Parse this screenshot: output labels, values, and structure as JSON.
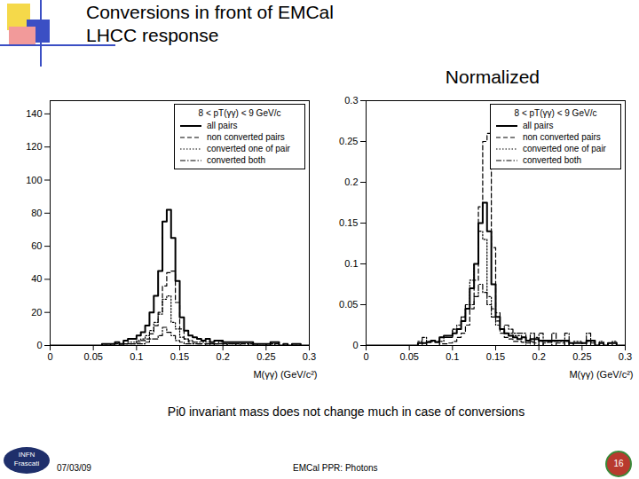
{
  "slide": {
    "title": "Conversions in front of EMCal",
    "subtitle": "LHCC response",
    "caption": "Pi0 invariant mass does not change much in case of conversions",
    "date": "07/03/09",
    "footer": "EMCal PPR: Photons",
    "page": "16",
    "logo": [
      "INFN",
      "Frascati"
    ]
  },
  "chart_data": [
    {
      "type": "histogram",
      "xlabel": "M(γγ) (GeV/c²)",
      "legend_title": "8 < pT(γγ) < 9 GeV/c",
      "legend": "top-right",
      "grid": false,
      "xlim": [
        0,
        0.3
      ],
      "xticks": [
        0,
        0.05,
        0.1,
        0.15,
        0.2,
        0.25,
        0.3
      ],
      "ylim": [
        0,
        148
      ],
      "yticks": [
        0,
        20,
        40,
        60,
        80,
        100,
        120,
        140
      ],
      "bins": [
        0,
        0.005,
        0.01,
        0.015,
        0.02,
        0.025,
        0.03,
        0.035,
        0.04,
        0.045,
        0.05,
        0.055,
        0.06,
        0.065,
        0.07,
        0.075,
        0.08,
        0.085,
        0.09,
        0.095,
        0.1,
        0.105,
        0.11,
        0.115,
        0.12,
        0.125,
        0.13,
        0.135,
        0.14,
        0.145,
        0.15,
        0.155,
        0.16,
        0.165,
        0.17,
        0.175,
        0.18,
        0.185,
        0.19,
        0.195,
        0.2,
        0.205,
        0.21,
        0.215,
        0.22,
        0.225,
        0.23,
        0.235,
        0.24,
        0.245,
        0.25,
        0.255,
        0.26,
        0.265,
        0.27,
        0.275,
        0.28,
        0.285,
        0.29,
        0.295,
        0.3
      ],
      "series": [
        {
          "name": "all pairs",
          "color": "#000000",
          "line_style": "solid",
          "values": [
            0,
            0,
            0,
            0,
            0,
            0,
            0,
            0,
            0,
            0,
            0,
            0,
            1,
            1,
            1,
            2,
            1,
            3,
            4,
            4,
            6,
            8,
            12,
            20,
            30,
            45,
            75,
            82,
            65,
            39,
            17,
            9,
            6,
            5,
            4,
            3,
            4,
            2,
            3,
            3,
            2,
            2,
            2,
            2,
            2,
            2,
            2,
            1,
            1,
            1,
            1,
            2,
            2,
            0,
            1,
            0,
            1,
            1,
            0,
            0
          ]
        },
        {
          "name": "non converted pairs",
          "color": "#000000",
          "line_style": "dashed",
          "values": [
            0,
            0,
            0,
            0,
            0,
            0,
            0,
            0,
            0,
            0,
            0,
            0,
            0,
            0,
            0,
            1,
            0,
            1,
            1,
            1,
            2,
            3,
            4,
            7,
            12,
            20,
            36,
            44,
            45,
            26,
            10,
            4,
            2,
            2,
            1,
            1,
            1,
            1,
            1,
            1,
            0,
            1,
            1,
            0,
            1,
            1,
            0,
            1,
            0,
            0,
            1,
            0,
            1,
            0,
            0,
            0,
            1,
            0,
            0,
            0
          ]
        },
        {
          "name": "converted one of pair",
          "color": "#000000",
          "line_style": "dotted",
          "values": [
            0,
            0,
            0,
            0,
            0,
            0,
            0,
            0,
            0,
            0,
            0,
            0,
            1,
            0,
            1,
            1,
            1,
            1,
            2,
            2,
            3,
            4,
            6,
            9,
            14,
            19,
            28,
            30,
            14,
            10,
            5,
            4,
            3,
            2,
            2,
            2,
            2,
            1,
            1,
            2,
            1,
            1,
            1,
            1,
            1,
            1,
            1,
            0,
            1,
            1,
            0,
            1,
            1,
            0,
            1,
            0,
            0,
            1,
            0,
            0
          ]
        },
        {
          "name": "converted both",
          "color": "#000000",
          "line_style": "dashdot",
          "values": [
            0,
            0,
            0,
            0,
            0,
            0,
            0,
            0,
            0,
            0,
            0,
            0,
            0,
            1,
            0,
            0,
            0,
            1,
            1,
            1,
            1,
            1,
            2,
            4,
            4,
            6,
            11,
            8,
            6,
            3,
            2,
            1,
            1,
            1,
            1,
            0,
            1,
            0,
            1,
            0,
            1,
            0,
            0,
            1,
            0,
            0,
            1,
            0,
            0,
            0,
            0,
            1,
            0,
            0,
            0,
            0,
            0,
            0,
            0,
            0
          ]
        }
      ]
    },
    {
      "type": "histogram",
      "title": "Normalized",
      "xlabel": "M(γγ) (GeV/c²)",
      "legend_title": "8 < pT(γγ) < 9 GeV/c",
      "legend": "top-right",
      "grid": false,
      "xlim": [
        0,
        0.3
      ],
      "xticks": [
        0,
        0.05,
        0.1,
        0.15,
        0.2,
        0.25,
        0.3
      ],
      "ylim": [
        0,
        0.3
      ],
      "yticks": [
        0,
        0.05,
        0.1,
        0.15,
        0.2,
        0.25,
        0.3
      ],
      "bins": [
        0,
        0.005,
        0.01,
        0.015,
        0.02,
        0.025,
        0.03,
        0.035,
        0.04,
        0.045,
        0.05,
        0.055,
        0.06,
        0.065,
        0.07,
        0.075,
        0.08,
        0.085,
        0.09,
        0.095,
        0.1,
        0.105,
        0.11,
        0.115,
        0.12,
        0.125,
        0.13,
        0.135,
        0.14,
        0.145,
        0.15,
        0.155,
        0.16,
        0.165,
        0.17,
        0.175,
        0.18,
        0.185,
        0.19,
        0.195,
        0.2,
        0.205,
        0.21,
        0.215,
        0.22,
        0.225,
        0.23,
        0.235,
        0.24,
        0.245,
        0.25,
        0.255,
        0.26,
        0.265,
        0.27,
        0.275,
        0.28,
        0.285,
        0.29,
        0.295,
        0.3
      ],
      "series": [
        {
          "name": "all pairs",
          "color": "#000000",
          "line_style": "solid",
          "values": [
            0,
            0,
            0,
            0,
            0,
            0,
            0,
            0,
            0,
            0,
            0,
            0,
            0.003,
            0.003,
            0.004,
            0.006,
            0.004,
            0.01,
            0.012,
            0.012,
            0.015,
            0.02,
            0.03,
            0.045,
            0.07,
            0.1,
            0.15,
            0.175,
            0.14,
            0.075,
            0.035,
            0.02,
            0.015,
            0.012,
            0.01,
            0.008,
            0.01,
            0.006,
            0.008,
            0.008,
            0.006,
            0.006,
            0.006,
            0.006,
            0.006,
            0.006,
            0.006,
            0.003,
            0.003,
            0.003,
            0.003,
            0.006,
            0.006,
            0,
            0.003,
            0,
            0.003,
            0.003,
            0,
            0
          ]
        },
        {
          "name": "non converted pairs",
          "color": "#000000",
          "line_style": "dashed",
          "values": [
            0,
            0,
            0,
            0,
            0,
            0,
            0,
            0,
            0,
            0,
            0,
            0,
            0,
            0,
            0,
            0,
            0,
            0.002,
            0.002,
            0.003,
            0.005,
            0.01,
            0.015,
            0.025,
            0.045,
            0.08,
            0.17,
            0.25,
            0.26,
            0.12,
            0.04,
            0.015,
            0.01,
            0.008,
            0.005,
            0.005,
            0.004,
            0.003,
            0.004,
            0.003,
            0,
            0.003,
            0.004,
            0,
            0.003,
            0.003,
            0,
            0.003,
            0,
            0,
            0.003,
            0,
            0.003,
            0,
            0,
            0,
            0.003,
            0,
            0,
            0
          ]
        },
        {
          "name": "converted one of pair",
          "color": "#000000",
          "line_style": "dotted",
          "values": [
            0,
            0,
            0,
            0,
            0,
            0,
            0,
            0,
            0,
            0,
            0,
            0,
            0.005,
            0,
            0.005,
            0.005,
            0.005,
            0.005,
            0.01,
            0.01,
            0.02,
            0.025,
            0.035,
            0.05,
            0.08,
            0.1,
            0.14,
            0.13,
            0.06,
            0.045,
            0.025,
            0.02,
            0.015,
            0.015,
            0.012,
            0.012,
            0.01,
            0.005,
            0.005,
            0.01,
            0.005,
            0.005,
            0.005,
            0.005,
            0.005,
            0.005,
            0.005,
            0,
            0.005,
            0.005,
            0,
            0.005,
            0.005,
            0,
            0.005,
            0,
            0,
            0.005,
            0,
            0
          ]
        },
        {
          "name": "converted both",
          "color": "#000000",
          "line_style": "dashdot",
          "values": [
            0,
            0,
            0,
            0,
            0,
            0,
            0,
            0,
            0,
            0,
            0,
            0,
            0,
            0.01,
            0,
            0,
            0,
            0.01,
            0.01,
            0.01,
            0.02,
            0.02,
            0.035,
            0.05,
            0.05,
            0.06,
            0.075,
            0.065,
            0.05,
            0.035,
            0.03,
            0.02,
            0.025,
            0.02,
            0.015,
            0.015,
            0.015,
            0,
            0.015,
            0,
            0.015,
            0,
            0,
            0.015,
            0,
            0,
            0.015,
            0,
            0,
            0,
            0,
            0.015,
            0,
            0,
            0,
            0,
            0,
            0,
            0,
            0
          ]
        }
      ]
    }
  ]
}
